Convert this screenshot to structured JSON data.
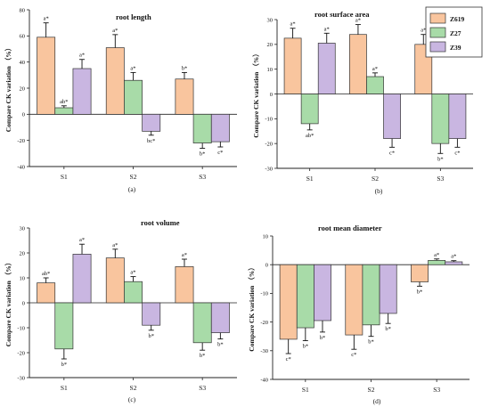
{
  "colors": {
    "Z619": "#f9c59e",
    "Z27": "#a8dba8",
    "Z39": "#c9b6e1"
  },
  "chart_data": [
    {
      "type": "bar",
      "panel_label": "(a)",
      "title": "root length",
      "ylabel": "Compare CK variation （%）",
      "categories": [
        "S1",
        "S2",
        "S3"
      ],
      "ylim": [
        -40,
        80
      ],
      "yticks": [
        -40,
        -20,
        0,
        20,
        40,
        60,
        80
      ],
      "series": [
        {
          "name": "Z619",
          "values": [
            59,
            51,
            27
          ],
          "errors": [
            11,
            10,
            5
          ],
          "labels": [
            "a*",
            "a*",
            "b*"
          ]
        },
        {
          "name": "Z27",
          "values": [
            5,
            26,
            -22
          ],
          "errors": [
            1.5,
            6,
            4
          ],
          "labels": [
            "ab*",
            "a*",
            "b*"
          ]
        },
        {
          "name": "Z39",
          "values": [
            35,
            -13,
            -21
          ],
          "errors": [
            7,
            3,
            4
          ],
          "labels": [
            "a*",
            "bc*",
            "c*"
          ]
        }
      ]
    },
    {
      "type": "bar",
      "panel_label": "(b)",
      "title": "root surface area",
      "ylabel": "Compare CK variation （%）",
      "categories": [
        "S1",
        "S2",
        "S3"
      ],
      "ylim": [
        -30,
        30
      ],
      "yticks": [
        -30,
        -20,
        -10,
        0,
        10,
        20,
        30
      ],
      "series": [
        {
          "name": "Z619",
          "values": [
            22.5,
            24,
            20
          ],
          "errors": [
            4,
            4,
            4
          ],
          "labels": [
            "a*",
            "a*",
            "a*"
          ]
        },
        {
          "name": "Z27",
          "values": [
            -12,
            7,
            -20
          ],
          "errors": [
            2.5,
            1.5,
            4
          ],
          "labels": [
            "ab*",
            "a*",
            "b*"
          ]
        },
        {
          "name": "Z39",
          "values": [
            20.5,
            -18,
            -18
          ],
          "errors": [
            4,
            3.5,
            3.5
          ],
          "labels": [
            "a*",
            "c*",
            "c*"
          ]
        }
      ]
    },
    {
      "type": "bar",
      "panel_label": "(c)",
      "title": "root volume",
      "ylabel": "Compare CK variation （%）",
      "categories": [
        "S1",
        "S2",
        "S3"
      ],
      "ylim": [
        -30,
        30
      ],
      "yticks": [
        -30,
        -20,
        -10,
        0,
        10,
        20,
        30
      ],
      "series": [
        {
          "name": "Z619",
          "values": [
            8,
            18,
            14.5
          ],
          "errors": [
            2,
            3.5,
            3
          ],
          "labels": [
            "ab*",
            "a*",
            "a*"
          ]
        },
        {
          "name": "Z27",
          "values": [
            -18.5,
            8.5,
            -16
          ],
          "errors": [
            4,
            2,
            3
          ],
          "labels": [
            "b*",
            "a*",
            "b*"
          ]
        },
        {
          "name": "Z39",
          "values": [
            19.5,
            -9,
            -12
          ],
          "errors": [
            4,
            2,
            2.5
          ],
          "labels": [
            "a*",
            "b*",
            "b*"
          ]
        }
      ]
    },
    {
      "type": "bar",
      "panel_label": "(d)",
      "title": "root mean diameter",
      "ylabel": "Compare CK variation （%）",
      "categories": [
        "S1",
        "S2",
        "S3"
      ],
      "ylim": [
        -40,
        10
      ],
      "yticks": [
        -40,
        -30,
        -20,
        -10,
        0,
        10
      ],
      "series": [
        {
          "name": "Z619",
          "values": [
            -26,
            -24.5,
            -6
          ],
          "errors": [
            5,
            5,
            1.5
          ],
          "labels": [
            "c*",
            "c*",
            "b*"
          ]
        },
        {
          "name": "Z27",
          "values": [
            -22,
            -21,
            1.5
          ],
          "errors": [
            4.5,
            4,
            0.5
          ],
          "labels": [
            "b*",
            "b*",
            "a*"
          ]
        },
        {
          "name": "Z39",
          "values": [
            -19.5,
            -17,
            1
          ],
          "errors": [
            4,
            3.5,
            0.4
          ],
          "labels": [
            "b*",
            "b*",
            "a*"
          ]
        }
      ]
    }
  ]
}
